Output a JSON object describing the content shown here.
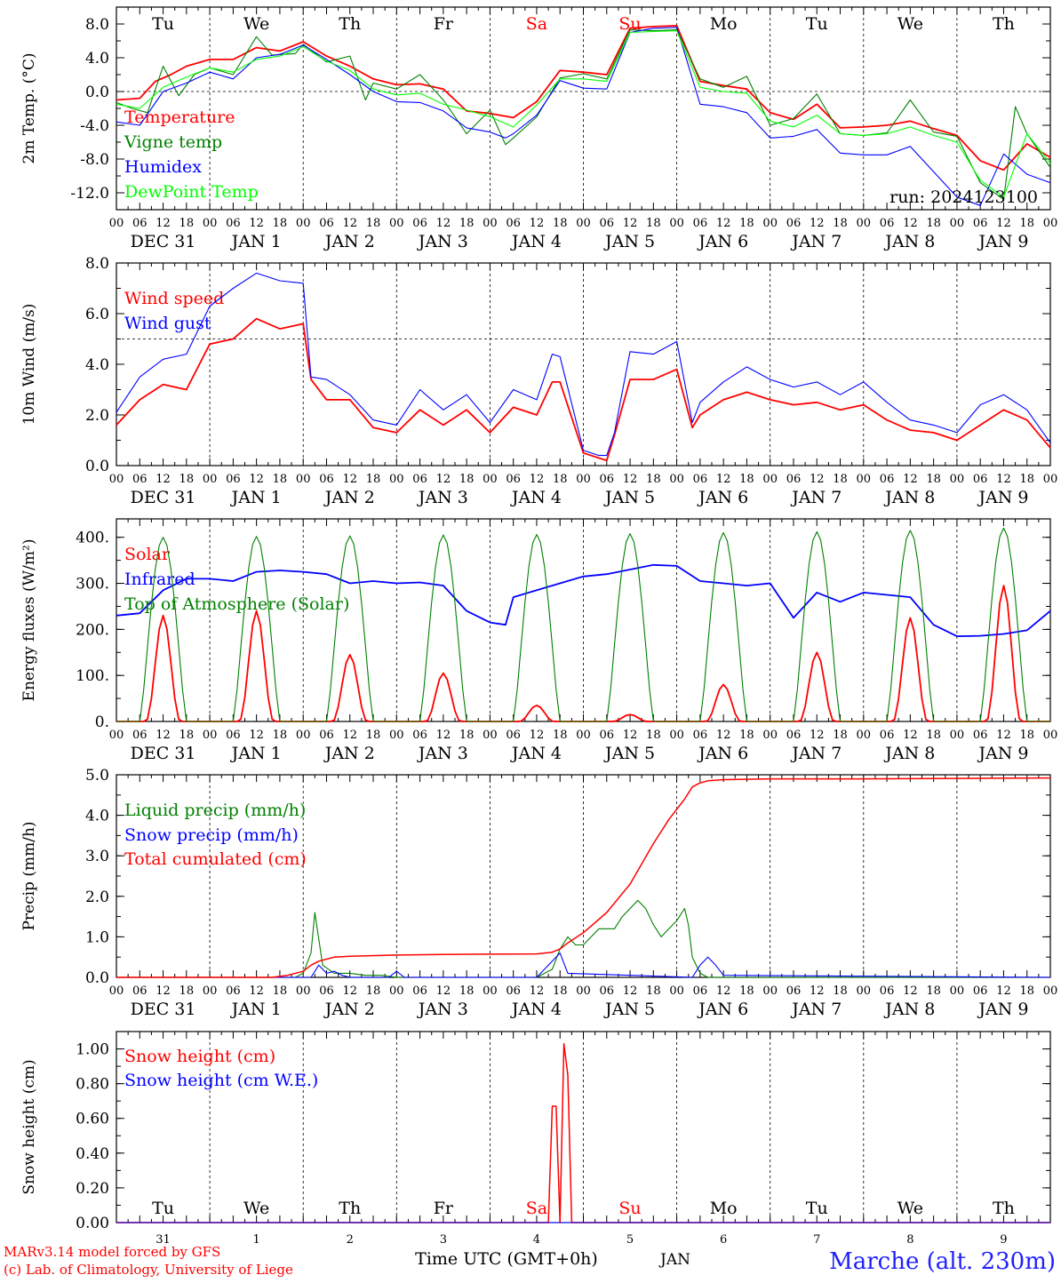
{
  "run_label": "run: 2024123100",
  "station": "Marche (alt. 230m)",
  "credits": [
    "MARv3.14 model forced by GFS",
    "(c) Lab. of Climatology, University of Liege"
  ],
  "x_axis_title": "Time UTC (GMT+0h)",
  "month_label": "JAN",
  "hour_ticks": [
    "00",
    "06",
    "12",
    "18"
  ],
  "hour_ticks_end": "00",
  "date_labels": [
    "DEC 31",
    "JAN  1",
    "JAN  2",
    "JAN  3",
    "JAN  4",
    "JAN  5",
    "JAN  6",
    "JAN  7",
    "JAN  8",
    "JAN  9"
  ],
  "weekdays": [
    "Tu",
    "We",
    "Th",
    "Fr",
    "Sa",
    "Su",
    "Mo",
    "Tu",
    "We",
    "Th"
  ],
  "weekend_flags": [
    false,
    false,
    false,
    false,
    true,
    true,
    false,
    false,
    false,
    false
  ],
  "day_numbers": [
    "31",
    "1",
    "2",
    "3",
    "4",
    "5",
    "6",
    "7",
    "8",
    "9"
  ],
  "colors": {
    "red": "#ff0000",
    "green": "#008000",
    "blue": "#0000ff",
    "lightgreen": "#00ff00",
    "weekend": "#ff0000",
    "station": "#2020ff",
    "axis": "#000000"
  },
  "chart_data": [
    {
      "type": "line",
      "ylabel": "2m Temp. (°C)",
      "ylim": [
        -14,
        10
      ],
      "yticks": [
        "-12.0",
        "-8.0",
        "-4.0",
        "0.0",
        "4.0",
        "8.0"
      ],
      "ytick_values": [
        -12,
        -8,
        -4,
        0,
        4,
        8
      ],
      "reference_line": 0,
      "x_unit": "hours from 2024-12-31 00 UTC",
      "series": [
        {
          "name": "Temperature",
          "color": "#ff0000",
          "width": 1.8,
          "x": [
            0,
            6,
            10,
            14,
            18,
            24,
            30,
            36,
            42,
            48,
            54,
            60,
            66,
            72,
            78,
            84,
            90,
            96,
            102,
            108,
            114,
            120,
            126,
            132,
            138,
            144,
            150,
            156,
            162,
            168,
            174,
            180,
            186,
            192,
            198,
            204,
            210,
            216,
            222,
            228,
            234,
            240
          ],
          "values": [
            -1.0,
            -0.8,
            1.2,
            2.0,
            3.0,
            3.8,
            3.8,
            5.2,
            4.8,
            5.9,
            4.2,
            3.0,
            1.5,
            0.8,
            0.9,
            0.3,
            -2.3,
            -2.6,
            -3.1,
            -1.2,
            2.5,
            2.3,
            2.0,
            7.5,
            7.7,
            7.8,
            1.2,
            0.7,
            0.3,
            -2.5,
            -3.3,
            -1.5,
            -4.3,
            -4.2,
            -4.0,
            -3.5,
            -4.4,
            -5.2,
            -8.2,
            -9.3,
            -6.2,
            -7.8
          ]
        },
        {
          "name": "Vigne temp",
          "color": "#008000",
          "width": 1.1,
          "x": [
            0,
            4,
            8,
            12,
            16,
            20,
            24,
            30,
            36,
            40,
            46,
            48,
            54,
            60,
            64,
            66,
            72,
            78,
            84,
            90,
            96,
            100,
            102,
            108,
            114,
            120,
            126,
            132,
            138,
            144,
            150,
            156,
            162,
            168,
            174,
            180,
            186,
            192,
            198,
            204,
            210,
            216,
            222,
            228,
            231,
            234,
            240
          ],
          "values": [
            -1.3,
            -2.0,
            -2.5,
            3.0,
            -0.5,
            2.0,
            2.8,
            2.0,
            6.5,
            4.3,
            4.5,
            5.6,
            3.5,
            4.2,
            -1.0,
            1.0,
            0.3,
            2.0,
            -1.0,
            -5.0,
            -2.2,
            -6.3,
            -5.5,
            -3.0,
            1.6,
            2.1,
            1.5,
            7.3,
            7.2,
            7.3,
            1.5,
            0.5,
            1.8,
            -4.0,
            -3.2,
            -0.3,
            -5.0,
            -5.2,
            -4.9,
            -1.0,
            -4.8,
            -5.3,
            -10.8,
            -12.8,
            -1.8,
            -5.0,
            -9.0
          ]
        },
        {
          "name": "Humidex",
          "color": "#0000ff",
          "width": 1.1,
          "x": [
            0,
            6,
            12,
            18,
            24,
            30,
            36,
            42,
            48,
            54,
            60,
            66,
            72,
            78,
            84,
            90,
            96,
            100,
            102,
            108,
            114,
            120,
            126,
            132,
            138,
            144,
            150,
            156,
            162,
            168,
            174,
            180,
            186,
            192,
            198,
            204,
            210,
            216,
            222,
            228,
            234,
            240
          ],
          "values": [
            -3.6,
            -4.0,
            0.0,
            1.0,
            2.3,
            1.5,
            4.0,
            4.4,
            5.5,
            3.8,
            2.0,
            0.0,
            -1.2,
            -1.3,
            -2.3,
            -4.3,
            -4.8,
            -5.5,
            -5.0,
            -2.8,
            1.3,
            0.4,
            0.3,
            7.0,
            7.5,
            7.6,
            -1.5,
            -1.8,
            -2.5,
            -5.5,
            -5.3,
            -4.5,
            -7.3,
            -7.5,
            -7.5,
            -6.5,
            -9.5,
            -12.5,
            -13.5,
            -7.4,
            -9.8,
            -10.8
          ]
        },
        {
          "name": "DewPoint Temp",
          "color": "#00ff00",
          "width": 1.1,
          "x": [
            0,
            6,
            12,
            18,
            24,
            30,
            36,
            42,
            48,
            54,
            60,
            66,
            72,
            78,
            84,
            90,
            96,
            102,
            108,
            114,
            120,
            126,
            132,
            138,
            144,
            150,
            156,
            162,
            168,
            174,
            180,
            186,
            192,
            198,
            204,
            210,
            216,
            222,
            228,
            234,
            240
          ],
          "values": [
            -1.5,
            -2.0,
            0.5,
            1.7,
            2.8,
            2.3,
            3.8,
            4.2,
            5.3,
            3.6,
            2.5,
            0.3,
            -0.4,
            -0.2,
            -1.5,
            -2.2,
            -3.0,
            -4.2,
            -1.6,
            1.5,
            1.5,
            1.2,
            7.0,
            7.1,
            7.2,
            0.5,
            0.0,
            -0.2,
            -3.5,
            -4.2,
            -2.8,
            -5.0,
            -5.2,
            -5.0,
            -4.2,
            -5.2,
            -6.0,
            -10.5,
            -12.5,
            -5.0,
            -8.5
          ]
        }
      ]
    },
    {
      "type": "line",
      "ylabel": "10m Wind (m/s)",
      "ylim": [
        0,
        8
      ],
      "yticks": [
        "0.0",
        "2.0",
        "4.0",
        "6.0",
        "8.0"
      ],
      "ytick_values": [
        0,
        2,
        4,
        6,
        8
      ],
      "reference_line": 5,
      "series": [
        {
          "name": "Wind speed",
          "color": "#ff0000",
          "width": 1.8,
          "x": [
            0,
            6,
            12,
            18,
            24,
            30,
            36,
            42,
            48,
            50,
            54,
            60,
            66,
            72,
            78,
            84,
            90,
            96,
            102,
            108,
            112,
            114,
            120,
            124,
            126,
            128,
            132,
            138,
            144,
            148,
            150,
            156,
            162,
            168,
            174,
            180,
            186,
            192,
            198,
            204,
            210,
            216,
            222,
            228,
            234,
            240
          ],
          "values": [
            1.6,
            2.6,
            3.2,
            3.0,
            4.8,
            5.0,
            5.8,
            5.4,
            5.6,
            3.4,
            2.6,
            2.6,
            1.5,
            1.3,
            2.2,
            1.6,
            2.2,
            1.3,
            2.3,
            2.0,
            3.3,
            3.3,
            0.5,
            0.3,
            0.2,
            1.2,
            3.4,
            3.4,
            3.8,
            1.5,
            2.0,
            2.6,
            2.9,
            2.6,
            2.4,
            2.5,
            2.2,
            2.4,
            1.8,
            1.4,
            1.3,
            1.0,
            1.6,
            2.2,
            1.8,
            0.7
          ]
        },
        {
          "name": "Wind gust",
          "color": "#0000ff",
          "width": 1.1,
          "x": [
            0,
            6,
            12,
            18,
            24,
            30,
            36,
            42,
            48,
            50,
            54,
            60,
            66,
            72,
            78,
            84,
            90,
            96,
            102,
            108,
            112,
            114,
            120,
            124,
            126,
            128,
            132,
            138,
            144,
            148,
            150,
            156,
            162,
            168,
            174,
            180,
            186,
            192,
            198,
            204,
            210,
            216,
            222,
            228,
            234,
            240
          ],
          "values": [
            2.1,
            3.5,
            4.2,
            4.4,
            6.3,
            7.0,
            7.6,
            7.3,
            7.2,
            3.5,
            3.4,
            2.8,
            1.8,
            1.6,
            3.0,
            2.2,
            2.8,
            1.7,
            3.0,
            2.6,
            4.4,
            4.3,
            0.6,
            0.4,
            0.4,
            1.3,
            4.5,
            4.4,
            4.9,
            1.7,
            2.5,
            3.3,
            3.9,
            3.4,
            3.1,
            3.3,
            2.8,
            3.3,
            2.5,
            1.8,
            1.6,
            1.3,
            2.4,
            2.8,
            2.2,
            0.9
          ]
        }
      ]
    },
    {
      "type": "line",
      "ylabel": "Energy fluxes (W/m²)",
      "ylim": [
        0,
        440
      ],
      "yticks": [
        "0.",
        "100.",
        "200.",
        "300.",
        "400."
      ],
      "ytick_values": [
        0,
        100,
        200,
        300,
        400
      ],
      "series": [
        {
          "name": "Solar",
          "color": "#ff0000",
          "width": 1.8,
          "peaks": [
            230,
            240,
            145,
            105,
            35,
            15,
            80,
            150,
            225,
            295
          ]
        },
        {
          "name": "Infrared",
          "color": "#0000ff",
          "width": 1.8,
          "x": [
            0,
            6,
            12,
            18,
            24,
            30,
            36,
            42,
            48,
            54,
            60,
            66,
            72,
            78,
            84,
            90,
            96,
            100,
            102,
            108,
            114,
            120,
            126,
            132,
            138,
            144,
            150,
            156,
            162,
            168,
            174,
            180,
            186,
            192,
            198,
            204,
            210,
            216,
            222,
            228,
            234,
            240
          ],
          "values": [
            230,
            235,
            285,
            310,
            310,
            305,
            325,
            328,
            325,
            320,
            300,
            305,
            300,
            302,
            295,
            240,
            215,
            210,
            270,
            285,
            300,
            315,
            320,
            330,
            340,
            338,
            305,
            300,
            295,
            300,
            225,
            280,
            260,
            280,
            275,
            270,
            210,
            185,
            186,
            190,
            198,
            240
          ]
        },
        {
          "name": "Top of Atmosphere (Solar)",
          "color": "#008000",
          "width": 1.1,
          "peaks": [
            400,
            402,
            403,
            405,
            406,
            408,
            410,
            412,
            415,
            420
          ]
        }
      ]
    },
    {
      "type": "line",
      "ylabel": "Precip (mm/h)",
      "ylim": [
        0,
        5
      ],
      "yticks": [
        "0.0",
        "1.0",
        "2.0",
        "3.0",
        "4.0",
        "5.0"
      ],
      "ytick_values": [
        0,
        1,
        2,
        3,
        4,
        5
      ],
      "series": [
        {
          "name": "Liquid precip (mm/h)",
          "color": "#008000",
          "width": 1.1,
          "x": [
            0,
            46,
            48,
            50,
            51,
            53,
            56,
            60,
            64,
            68,
            72,
            100,
            108,
            112,
            114,
            116,
            118,
            120,
            124,
            128,
            130,
            134,
            136,
            138,
            140,
            142,
            144,
            146,
            147,
            148,
            150,
            152,
            240
          ],
          "values": [
            0,
            0,
            0.1,
            0.6,
            1.6,
            0.3,
            0.1,
            0.1,
            0.05,
            0.05,
            0,
            0,
            0,
            0.2,
            0.7,
            1.0,
            0.8,
            0.8,
            1.2,
            1.2,
            1.5,
            1.9,
            1.7,
            1.3,
            1.0,
            1.2,
            1.4,
            1.7,
            1.3,
            0.5,
            0.1,
            0,
            0
          ]
        },
        {
          "name": "Snow precip (mm/h)",
          "color": "#0000ff",
          "width": 1.1,
          "x": [
            0,
            50,
            52,
            54,
            56,
            58,
            60,
            70,
            72,
            74,
            108,
            110,
            112,
            114,
            116,
            148,
            150,
            152,
            154,
            156,
            240
          ],
          "values": [
            0,
            0,
            0.3,
            0.1,
            0.15,
            0.05,
            0,
            0,
            0.15,
            0,
            0,
            0.2,
            0.4,
            0.6,
            0.1,
            0,
            0.3,
            0.5,
            0.3,
            0.05,
            0
          ]
        },
        {
          "name": "Total cumulated (cm)",
          "color": "#ff0000",
          "width": 1.5,
          "x": [
            0,
            40,
            44,
            48,
            50,
            52,
            54,
            56,
            60,
            72,
            90,
            108,
            112,
            114,
            116,
            120,
            126,
            132,
            138,
            142,
            146,
            148,
            150,
            152,
            156,
            168,
            192,
            216,
            240
          ],
          "values": [
            0,
            0,
            0.05,
            0.15,
            0.3,
            0.4,
            0.45,
            0.5,
            0.52,
            0.55,
            0.57,
            0.58,
            0.62,
            0.7,
            0.85,
            1.1,
            1.6,
            2.3,
            3.3,
            3.9,
            4.4,
            4.7,
            4.8,
            4.85,
            4.88,
            4.9,
            4.9,
            4.91,
            4.92
          ]
        }
      ]
    },
    {
      "type": "line",
      "ylabel": "Snow height (cm)",
      "ylim": [
        0,
        1.1
      ],
      "yticks": [
        "0.00",
        "0.20",
        "0.40",
        "0.60",
        "0.80",
        "1.00"
      ],
      "ytick_values": [
        0,
        0.2,
        0.4,
        0.6,
        0.8,
        1.0
      ],
      "series": [
        {
          "name": "Snow height (cm)",
          "color": "#ff0000",
          "width": 1.5,
          "x": [
            0,
            111,
            112,
            113,
            114,
            115,
            116,
            117,
            118,
            119,
            240
          ],
          "values": [
            0,
            0,
            0.67,
            0.67,
            0,
            1.03,
            0.85,
            0,
            0,
            0,
            0
          ]
        },
        {
          "name": "Snow height (cm W.E.)",
          "color": "#0000ff",
          "width": 1.1,
          "x": [
            0,
            240
          ],
          "values": [
            0,
            0
          ]
        }
      ]
    }
  ]
}
